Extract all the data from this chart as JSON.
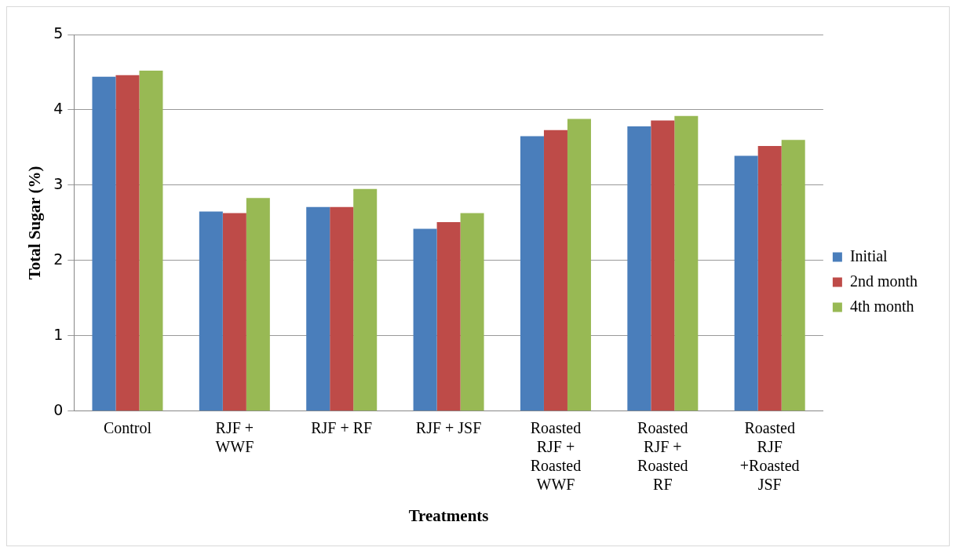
{
  "chart_data": {
    "type": "bar",
    "xlabel": "Treatments",
    "ylabel": "Total Sugar (%)",
    "categories": [
      "Control",
      "RJF + WWF",
      "RJF + RF",
      "RJF + JSF",
      "Roasted RJF + Roasted WWF",
      "Roasted RJF + Roasted RF",
      "Roasted RJF +Roasted JSF"
    ],
    "series": [
      {
        "name": "Initial",
        "color": "#4a7ebb",
        "values": [
          4.44,
          2.65,
          2.71,
          2.42,
          3.65,
          3.78,
          3.39
        ]
      },
      {
        "name": "2nd month",
        "color": "#be4b48",
        "values": [
          4.46,
          2.63,
          2.71,
          2.51,
          3.73,
          3.86,
          3.52
        ]
      },
      {
        "name": "4th month",
        "color": "#98b954",
        "values": [
          4.52,
          2.83,
          2.95,
          2.63,
          3.88,
          3.92,
          3.6
        ]
      }
    ],
    "ylim": [
      0,
      5
    ],
    "yticks": [
      0,
      1,
      2,
      3,
      4,
      5
    ],
    "grid": "y",
    "legend": "right"
  }
}
